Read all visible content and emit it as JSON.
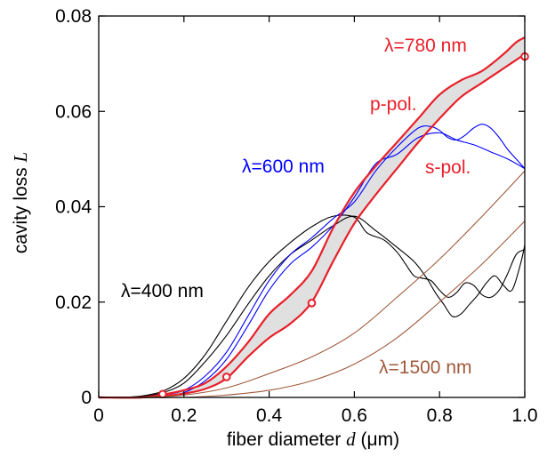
{
  "chart_data": {
    "type": "line",
    "xlabel": {
      "prefix": "fiber diameter ",
      "var": "d",
      "suffix": " (μm)"
    },
    "ylabel": {
      "prefix": "cavity loss ",
      "var": "L"
    },
    "xlim": [
      0,
      1.0
    ],
    "ylim": [
      0,
      0.08
    ],
    "grid": false,
    "xticks": [
      0,
      0.2,
      0.4,
      0.6,
      0.8,
      1.0
    ],
    "xtick_labels": [
      "0",
      "0.2",
      "0.4",
      "0.6",
      "0.8",
      "1.0"
    ],
    "yticks": [
      0,
      0.02,
      0.04,
      0.06,
      0.08
    ],
    "ytick_labels": [
      "0",
      "0.02",
      "0.04",
      "0.06",
      "0.08"
    ],
    "colors": {
      "w400": "#000000",
      "w600": "#0000ff",
      "w780": "#e8202a",
      "w1500": "#a05a3c",
      "band_fill": "#e0e0e0"
    },
    "annotations": {
      "w400": "λ=400 nm",
      "w600": "λ=600 nm",
      "w780": "λ=780 nm",
      "w1500": "λ=1500 nm",
      "ppol": "p-pol.",
      "spol": "s-pol."
    },
    "series": [
      {
        "group": "w400",
        "x": [
          0.05,
          0.1,
          0.15,
          0.2,
          0.25,
          0.3,
          0.35,
          0.4,
          0.45,
          0.5,
          0.55,
          0.6,
          0.63,
          0.67,
          0.7,
          0.72,
          0.74,
          0.76,
          0.78,
          0.8,
          0.82,
          0.84,
          0.86,
          0.88,
          0.9,
          0.92,
          0.94,
          0.96,
          0.98,
          1.0
        ],
        "y": [
          0,
          0.0003,
          0.0013,
          0.004,
          0.009,
          0.016,
          0.023,
          0.0285,
          0.0325,
          0.0358,
          0.038,
          0.0378,
          0.0345,
          0.033,
          0.0305,
          0.028,
          0.0255,
          0.025,
          0.0245,
          0.0225,
          0.021,
          0.022,
          0.024,
          0.0235,
          0.0215,
          0.021,
          0.0225,
          0.026,
          0.03,
          0.031
        ]
      },
      {
        "group": "w400",
        "x": [
          0.05,
          0.1,
          0.15,
          0.2,
          0.25,
          0.3,
          0.35,
          0.4,
          0.45,
          0.5,
          0.55,
          0.6,
          0.65,
          0.7,
          0.74,
          0.77,
          0.79,
          0.81,
          0.83,
          0.85,
          0.87,
          0.89,
          0.91,
          0.93,
          0.95,
          0.97,
          0.99,
          1.0
        ],
        "y": [
          0,
          0.0002,
          0.001,
          0.003,
          0.0075,
          0.013,
          0.0195,
          0.0255,
          0.03,
          0.033,
          0.036,
          0.038,
          0.035,
          0.0315,
          0.0285,
          0.025,
          0.022,
          0.0195,
          0.017,
          0.0175,
          0.0195,
          0.0215,
          0.024,
          0.0255,
          0.0235,
          0.0225,
          0.028,
          0.032
        ]
      },
      {
        "group": "w600",
        "x": [
          0.1,
          0.15,
          0.2,
          0.25,
          0.3,
          0.35,
          0.4,
          0.45,
          0.5,
          0.55,
          0.6,
          0.65,
          0.7,
          0.75,
          0.78,
          0.8,
          0.82,
          0.84,
          0.86,
          0.88,
          0.9,
          0.92,
          0.94,
          0.96,
          0.98,
          1.0
        ],
        "y": [
          0,
          0.0005,
          0.0015,
          0.0045,
          0.0095,
          0.017,
          0.0245,
          0.03,
          0.0335,
          0.0375,
          0.041,
          0.0475,
          0.0525,
          0.0565,
          0.0568,
          0.056,
          0.0545,
          0.054,
          0.055,
          0.0565,
          0.0573,
          0.0565,
          0.0545,
          0.052,
          0.05,
          0.048
        ]
      },
      {
        "group": "w600",
        "x": [
          0.1,
          0.15,
          0.2,
          0.25,
          0.3,
          0.35,
          0.4,
          0.45,
          0.5,
          0.55,
          0.6,
          0.65,
          0.7,
          0.75,
          0.8,
          0.84,
          0.88,
          0.92,
          0.96,
          1.0
        ],
        "y": [
          0,
          0.0003,
          0.001,
          0.0035,
          0.008,
          0.015,
          0.0225,
          0.028,
          0.0315,
          0.036,
          0.042,
          0.049,
          0.051,
          0.0545,
          0.0555,
          0.054,
          0.053,
          0.0515,
          0.05,
          0.048
        ]
      },
      {
        "group": "w780",
        "pol": "s",
        "x": [
          0.1,
          0.15,
          0.2,
          0.25,
          0.3,
          0.35,
          0.4,
          0.45,
          0.5,
          0.55,
          0.6,
          0.65,
          0.7,
          0.75,
          0.8,
          0.85,
          0.9,
          0.95,
          1.0
        ],
        "y": [
          0,
          0.0003,
          0.0008,
          0.0018,
          0.004,
          0.0085,
          0.0125,
          0.0155,
          0.02,
          0.0285,
          0.0365,
          0.0425,
          0.048,
          0.0535,
          0.0585,
          0.063,
          0.066,
          0.069,
          0.072
        ]
      },
      {
        "group": "w780",
        "pol": "p",
        "x": [
          0.1,
          0.15,
          0.2,
          0.25,
          0.3,
          0.35,
          0.4,
          0.45,
          0.5,
          0.55,
          0.6,
          0.65,
          0.7,
          0.75,
          0.8,
          0.85,
          0.9,
          0.95,
          0.98,
          1.0
        ],
        "y": [
          0,
          0.0006,
          0.0015,
          0.003,
          0.0065,
          0.0115,
          0.0175,
          0.0215,
          0.0265,
          0.0355,
          0.043,
          0.0485,
          0.0535,
          0.0585,
          0.0635,
          0.0665,
          0.0685,
          0.072,
          0.0745,
          0.0755
        ]
      },
      {
        "group": "w1500",
        "x": [
          0.1,
          0.2,
          0.3,
          0.4,
          0.5,
          0.6,
          0.7,
          0.8,
          0.9,
          1.0
        ],
        "y": [
          0,
          0.0005,
          0.002,
          0.005,
          0.0085,
          0.0135,
          0.021,
          0.029,
          0.038,
          0.0475
        ]
      },
      {
        "group": "w1500",
        "x": [
          0.2,
          0.3,
          0.4,
          0.5,
          0.6,
          0.7,
          0.8,
          0.9,
          1.0
        ],
        "y": [
          0,
          0.0005,
          0.0015,
          0.0035,
          0.007,
          0.0125,
          0.02,
          0.028,
          0.037
        ]
      }
    ],
    "markers": {
      "group": "w780",
      "x": [
        0.15,
        0.3,
        0.5,
        1.0
      ],
      "y": [
        0.0007,
        0.0043,
        0.0198,
        0.0715
      ]
    }
  }
}
